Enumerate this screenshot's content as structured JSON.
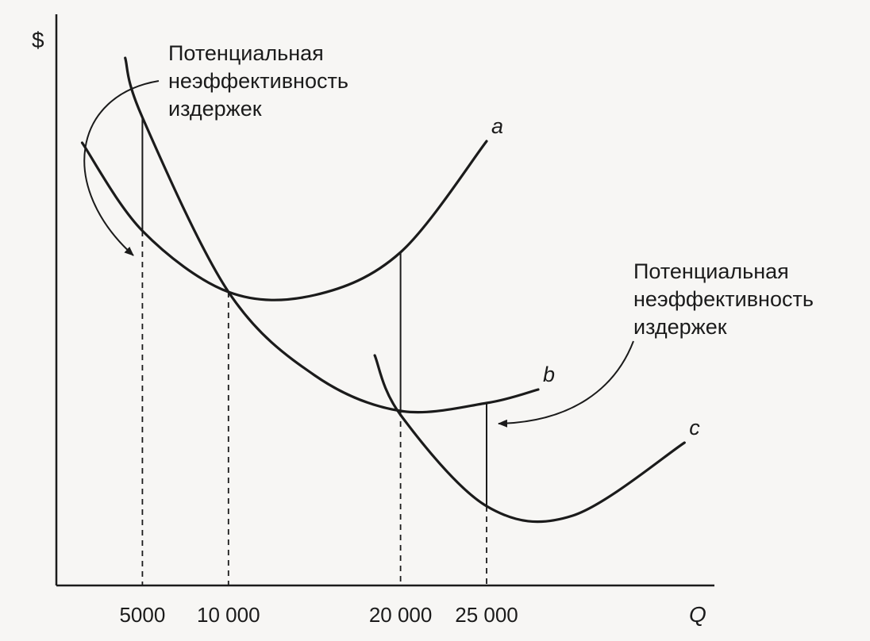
{
  "chart_data": {
    "type": "line",
    "xlabel": "Q",
    "ylabel": "$",
    "x_ticks": [
      "5000",
      "10 000",
      "20 000",
      "25 000"
    ],
    "x_tick_values": [
      5000,
      10000,
      20000,
      25000
    ],
    "xlim": [
      0,
      37000
    ],
    "grid": false,
    "series": [
      {
        "name": "a",
        "x": [
          1500,
          5000,
          10000,
          15000,
          20000,
          25000
        ],
        "y": [
          5.58,
          4.47,
          3.7,
          3.66,
          4.2,
          5.6
        ]
      },
      {
        "name": "b",
        "x": [
          4000,
          5000,
          10000,
          15000,
          20000,
          25000,
          28000
        ],
        "y": [
          6.65,
          5.9,
          3.7,
          2.65,
          2.2,
          2.3,
          2.47
        ]
      },
      {
        "name": "c",
        "x": [
          18500,
          20000,
          25000,
          30000,
          36500
        ],
        "y": [
          2.9,
          2.15,
          1.0,
          0.88,
          1.8
        ]
      }
    ],
    "annotations": [
      {
        "text": [
          "Потенциальная",
          "неэффективность",
          "издержек"
        ],
        "points_to_x": 5000
      },
      {
        "text": [
          "Потенциальная",
          "неэффективность",
          "издержек"
        ],
        "points_to_x": 25000
      }
    ]
  }
}
